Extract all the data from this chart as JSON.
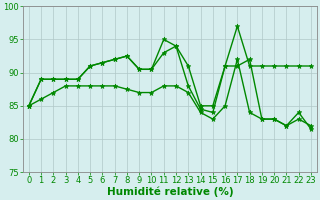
{
  "x": [
    0,
    1,
    2,
    3,
    4,
    5,
    6,
    7,
    8,
    9,
    10,
    11,
    12,
    13,
    14,
    15,
    16,
    17,
    18,
    19,
    20,
    21,
    22,
    23
  ],
  "series": [
    [
      85,
      86,
      87,
      88,
      88,
      88,
      88,
      88,
      87.5,
      87,
      87,
      88,
      88,
      87,
      84,
      83,
      85,
      92,
      84,
      83,
      83,
      82,
      83,
      82
    ],
    [
      85,
      89,
      89,
      89,
      89,
      91,
      91.5,
      92,
      92.5,
      90.5,
      90.5,
      95,
      94,
      88,
      84.5,
      84,
      91,
      97,
      91,
      91,
      91,
      91,
      91,
      91
    ],
    [
      85,
      89,
      89,
      89,
      89,
      91,
      91.5,
      92,
      92.5,
      90.5,
      90.5,
      93,
      94,
      91,
      85,
      85,
      91,
      91,
      92,
      83,
      83,
      82,
      84,
      81.5
    ]
  ],
  "line_color": "#008800",
  "marker": "*",
  "markersize": 3.5,
  "linewidth": 1.0,
  "xlabel": "Humidité relative (%)",
  "xlabel_color": "#008800",
  "xlabel_fontsize": 7.5,
  "ylim": [
    75,
    100
  ],
  "yticks": [
    75,
    80,
    85,
    90,
    95,
    100
  ],
  "xticks": [
    0,
    1,
    2,
    3,
    4,
    5,
    6,
    7,
    8,
    9,
    10,
    11,
    12,
    13,
    14,
    15,
    16,
    17,
    18,
    19,
    20,
    21,
    22,
    23
  ],
  "tick_fontsize": 6,
  "bg_color": "#d6eeee",
  "grid_color": "#b0c8c8",
  "grid_linewidth": 0.5,
  "spine_color": "#888888",
  "fig_width": 3.2,
  "fig_height": 2.0,
  "dpi": 100
}
